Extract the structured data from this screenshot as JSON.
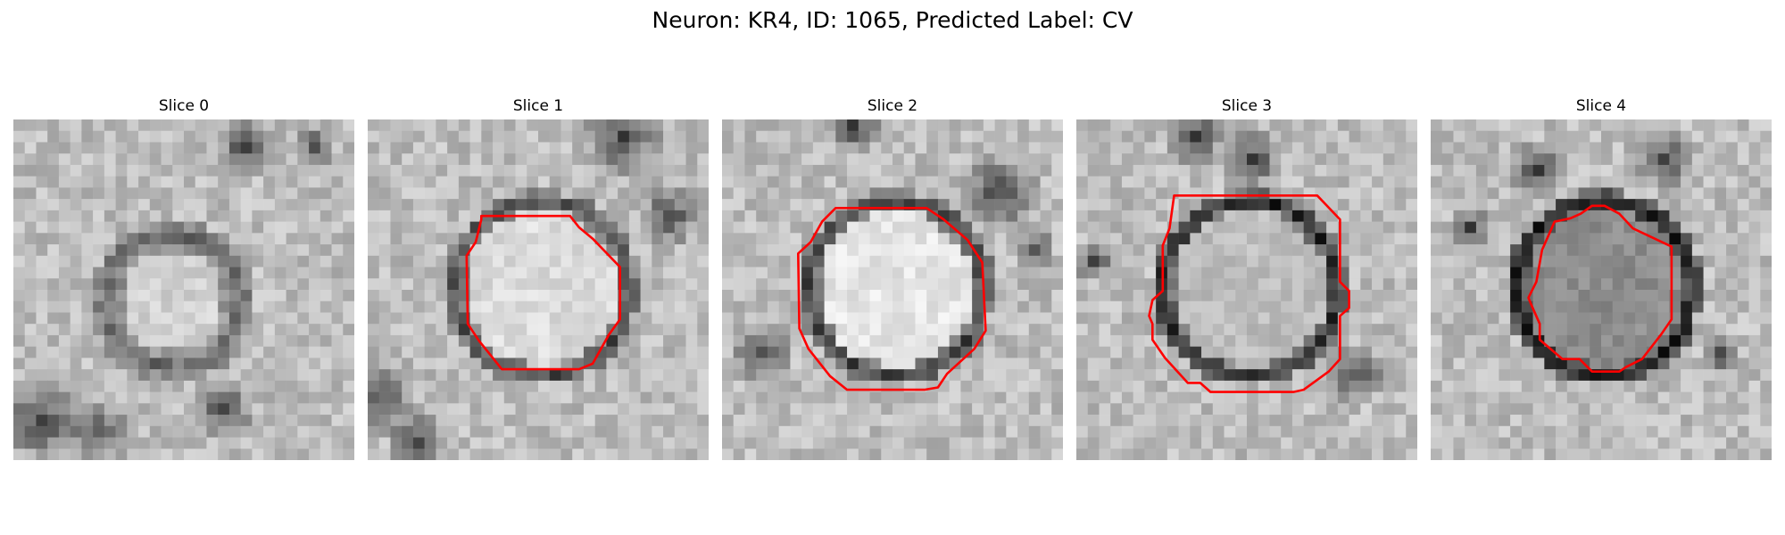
{
  "figure": {
    "title": "Neuron: KR4, ID: 1065, Predicted Label: CV"
  },
  "panels": [
    {
      "title": "Slice 0",
      "has_contour": false,
      "seed": 11,
      "ring_darkness": 0.35,
      "inner_brightness": 0.82
    },
    {
      "title": "Slice 1",
      "has_contour": true,
      "seed": 23,
      "ring_darkness": 0.45,
      "inner_brightness": 0.86
    },
    {
      "title": "Slice 2",
      "has_contour": true,
      "seed": 37,
      "ring_darkness": 0.5,
      "inner_brightness": 0.9
    },
    {
      "title": "Slice 3",
      "has_contour": true,
      "seed": 53,
      "ring_darkness": 0.62,
      "inner_brightness": 0.74
    },
    {
      "title": "Slice 4",
      "has_contour": true,
      "seed": 71,
      "ring_darkness": 0.7,
      "inner_brightness": 0.55
    }
  ],
  "colors": {
    "contour": "#ff0000"
  }
}
